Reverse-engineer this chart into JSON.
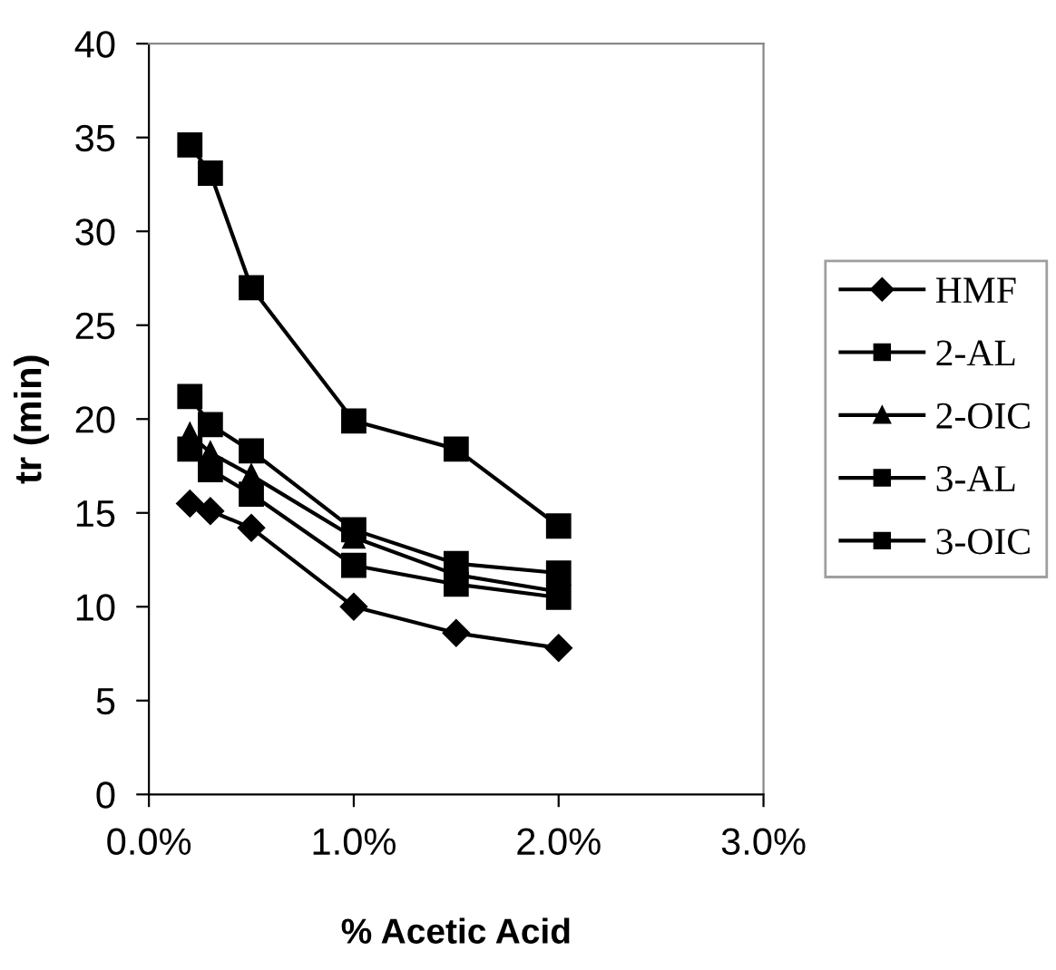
{
  "chart_data": {
    "type": "line",
    "xlabel": "% Acetic Acid",
    "ylabel": "tr (min)",
    "x": [
      0.2,
      0.3,
      0.5,
      1.0,
      1.5,
      2.0
    ],
    "series": [
      {
        "name": "HMF",
        "color": "#000000",
        "marker": "diamond",
        "values": [
          15.5,
          15.1,
          14.2,
          10.0,
          8.6,
          7.8
        ]
      },
      {
        "name": "2-AL",
        "color": "#000000",
        "marker": "square",
        "values": [
          18.4,
          17.3,
          16.0,
          12.2,
          11.2,
          10.5
        ]
      },
      {
        "name": "2-OIC",
        "color": "#000000",
        "marker": "triangle",
        "values": [
          19.2,
          18.2,
          17.0,
          13.7,
          11.7,
          10.8
        ]
      },
      {
        "name": "3-AL",
        "color": "#000000",
        "marker": "square",
        "values": [
          21.2,
          19.7,
          18.3,
          14.1,
          12.3,
          11.8
        ]
      },
      {
        "name": "3-OIC",
        "color": "#000000",
        "marker": "square",
        "values": [
          34.6,
          33.1,
          27.0,
          19.9,
          18.4,
          14.3
        ]
      }
    ],
    "xlim": [
      0,
      3
    ],
    "xticks": [
      {
        "value": 0,
        "label": "0.0%"
      },
      {
        "value": 1,
        "label": "1.0%"
      },
      {
        "value": 2,
        "label": "2.0%"
      },
      {
        "value": 3,
        "label": "3.0%"
      }
    ],
    "ylim": [
      0,
      40
    ],
    "yticks": [
      0,
      5,
      10,
      15,
      20,
      25,
      30,
      35,
      40
    ],
    "grid": false,
    "legend": "right",
    "line_style": "solid"
  }
}
